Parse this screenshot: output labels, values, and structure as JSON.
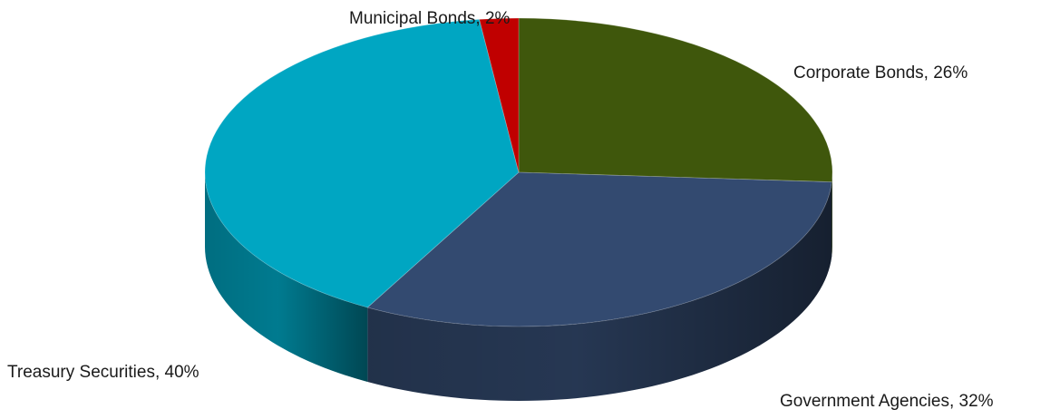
{
  "chart_data": {
    "type": "pie",
    "style": "3d",
    "title": "",
    "slices": [
      {
        "name": "Corporate Bonds",
        "value": 26,
        "color": "#3f570c",
        "label": "Corporate Bonds, 26%"
      },
      {
        "name": "Government Agencies",
        "value": 32,
        "color": "#334a70",
        "label": "Government Agencies, 32%"
      },
      {
        "name": "Treasury Securities",
        "value": 40,
        "color": "#00a6c2",
        "label": "Treasury Securities, 40%"
      },
      {
        "name": "Municipal Bonds",
        "value": 2,
        "color": "#c00000",
        "label": "Municipal Bonds, 2%"
      }
    ],
    "legend": "none"
  }
}
